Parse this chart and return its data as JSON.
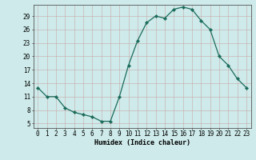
{
  "x": [
    0,
    1,
    2,
    3,
    4,
    5,
    6,
    7,
    8,
    9,
    10,
    11,
    12,
    13,
    14,
    15,
    16,
    17,
    18,
    19,
    20,
    21,
    22,
    23
  ],
  "y": [
    13,
    11,
    11,
    8.5,
    7.5,
    7,
    6.5,
    5.5,
    5.5,
    11,
    18,
    23.5,
    27.5,
    29,
    28.5,
    30.5,
    31,
    30.5,
    28,
    26,
    20,
    18,
    15,
    13
  ],
  "line_color": "#1a6b5a",
  "marker_color": "#1a6b5a",
  "bg_color": "#ceeaea",
  "grid_major_color": "#b8d8d8",
  "xlabel": "Humidex (Indice chaleur)",
  "xlabel_fontsize": 6.0,
  "tick_fontsize": 5.5,
  "ylim": [
    4,
    31.5
  ],
  "xlim": [
    -0.5,
    23.5
  ],
  "yticks": [
    5,
    8,
    11,
    14,
    17,
    20,
    23,
    26,
    29
  ],
  "xticks": [
    0,
    1,
    2,
    3,
    4,
    5,
    6,
    7,
    8,
    9,
    10,
    11,
    12,
    13,
    14,
    15,
    16,
    17,
    18,
    19,
    20,
    21,
    22,
    23
  ],
  "line_width": 0.9,
  "marker_size": 2.2
}
